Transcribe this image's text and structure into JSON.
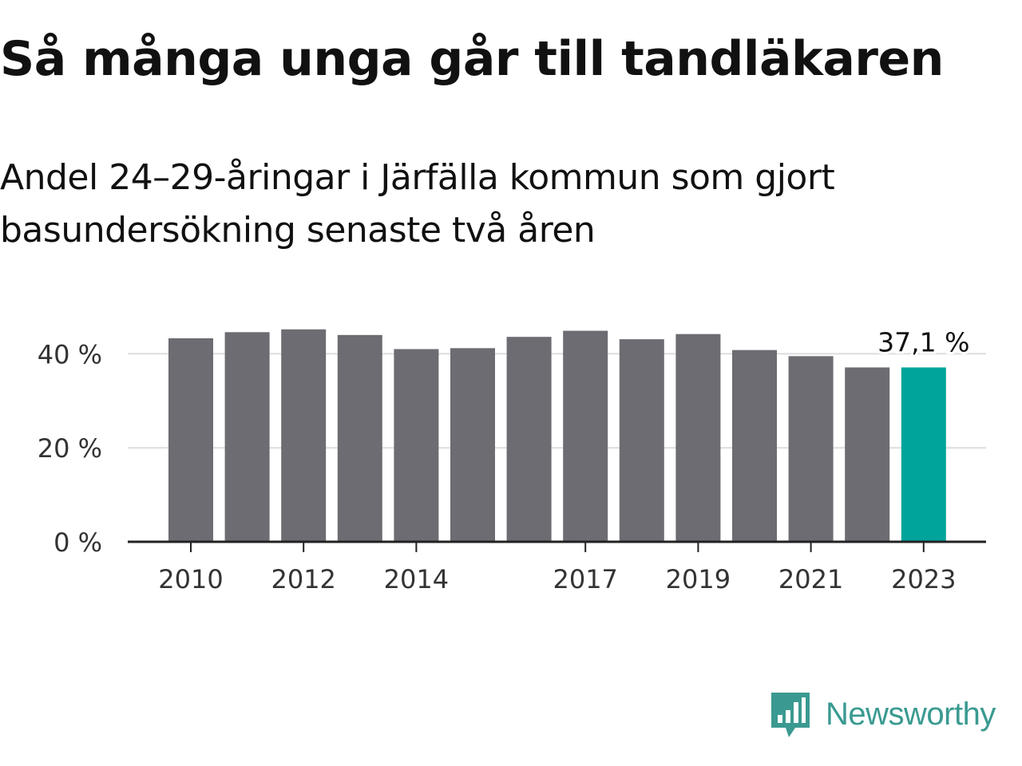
{
  "title": "Så många unga går till tandläkaren",
  "subtitle": "Andel 24–29-åringar i Järfälla kommun som gjort basundersökning senaste två åren",
  "brand": {
    "name": "Newsworthy",
    "icon": "newsworthy-logo-icon",
    "color": "#3a9a91"
  },
  "colors": {
    "bar": "#6d6c72",
    "highlight": "#00a49a",
    "grid": "#dddddd",
    "axis": "#222222",
    "tick_text": "#333333"
  },
  "chart_data": {
    "type": "bar",
    "categories": [
      "2010",
      "2011",
      "2012",
      "2013",
      "2014",
      "2015",
      "2016",
      "2017",
      "2018",
      "2019",
      "2020",
      "2021",
      "2022",
      "2023"
    ],
    "values": [
      43.3,
      44.6,
      45.2,
      44.0,
      41.0,
      41.2,
      43.6,
      44.9,
      43.1,
      44.2,
      40.8,
      39.5,
      37.1,
      37.1
    ],
    "highlight_index": 13,
    "data_labels": [
      {
        "index": 13,
        "text": "37,1 %"
      }
    ],
    "x_tick_labels": [
      "2010",
      "2012",
      "2014",
      "2017",
      "2019",
      "2021",
      "2023"
    ],
    "y_ticks": [
      0,
      20,
      40
    ],
    "y_tick_labels": [
      "0 %",
      "20 %",
      "40 %"
    ],
    "ylim": [
      0,
      45.5
    ],
    "grid": true,
    "xlabel": "",
    "ylabel": ""
  }
}
